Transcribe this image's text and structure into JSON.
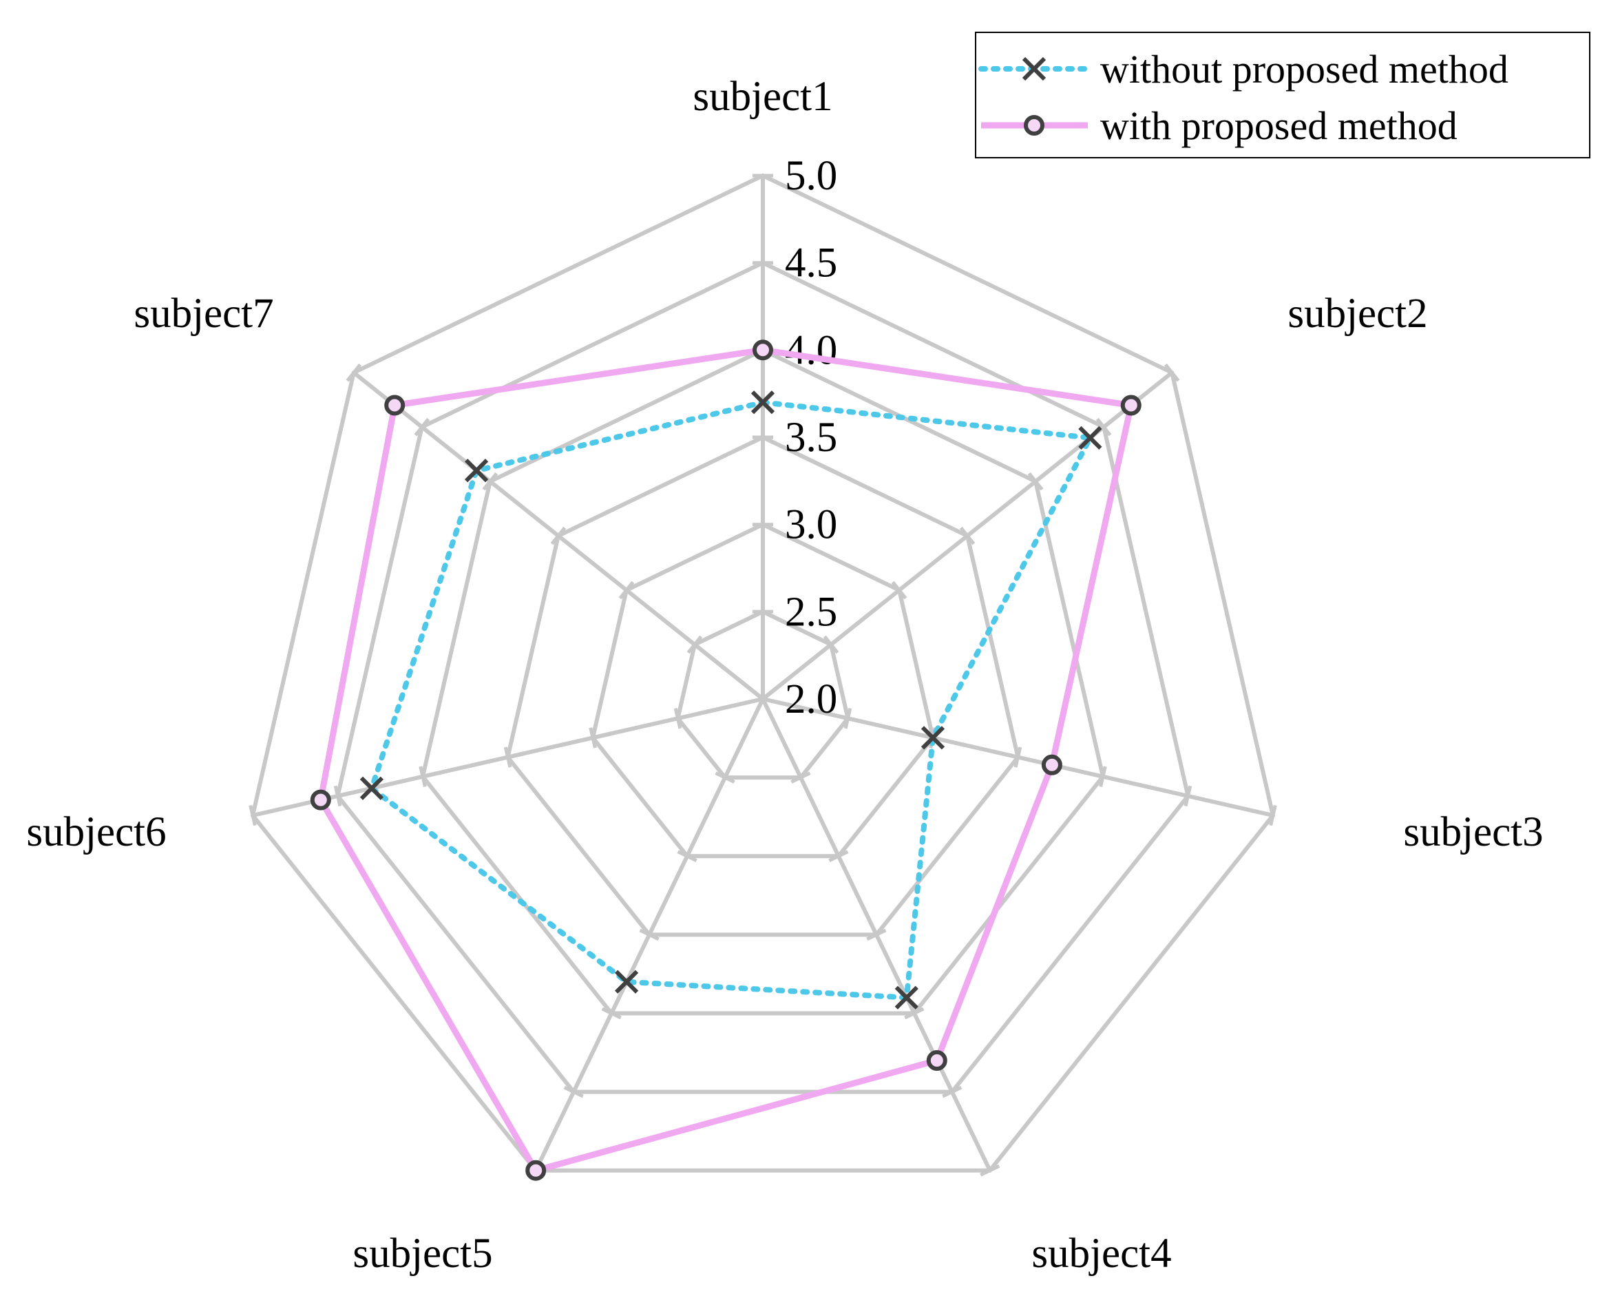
{
  "chart_data": {
    "type": "radar",
    "categories": [
      "subject1",
      "subject2",
      "subject3",
      "subject4",
      "subject5",
      "subject6",
      "subject7"
    ],
    "range": [
      2.0,
      5.0
    ],
    "ticks": [
      "2.0",
      "2.5",
      "3.0",
      "3.5",
      "4.0",
      "4.5",
      "5.0"
    ],
    "tick_values": [
      2.0,
      2.5,
      3.0,
      3.5,
      4.0,
      4.5,
      5.0
    ],
    "legend_position": "top-right",
    "grid": true,
    "series": [
      {
        "name": "without proposed method",
        "values": [
          3.7,
          4.4,
          3.0,
          3.9,
          3.8,
          4.3,
          4.1
        ],
        "color": "#4dc8e8",
        "line": "dotted",
        "marker": "x"
      },
      {
        "name": "with proposed method",
        "values": [
          4.0,
          4.7,
          3.7,
          4.3,
          5.0,
          4.6,
          4.7
        ],
        "color": "#f0a8f0",
        "line": "solid",
        "marker": "circle"
      }
    ],
    "colors": {
      "grid": "#c8c8c8",
      "marker_edge": "#404040"
    }
  }
}
